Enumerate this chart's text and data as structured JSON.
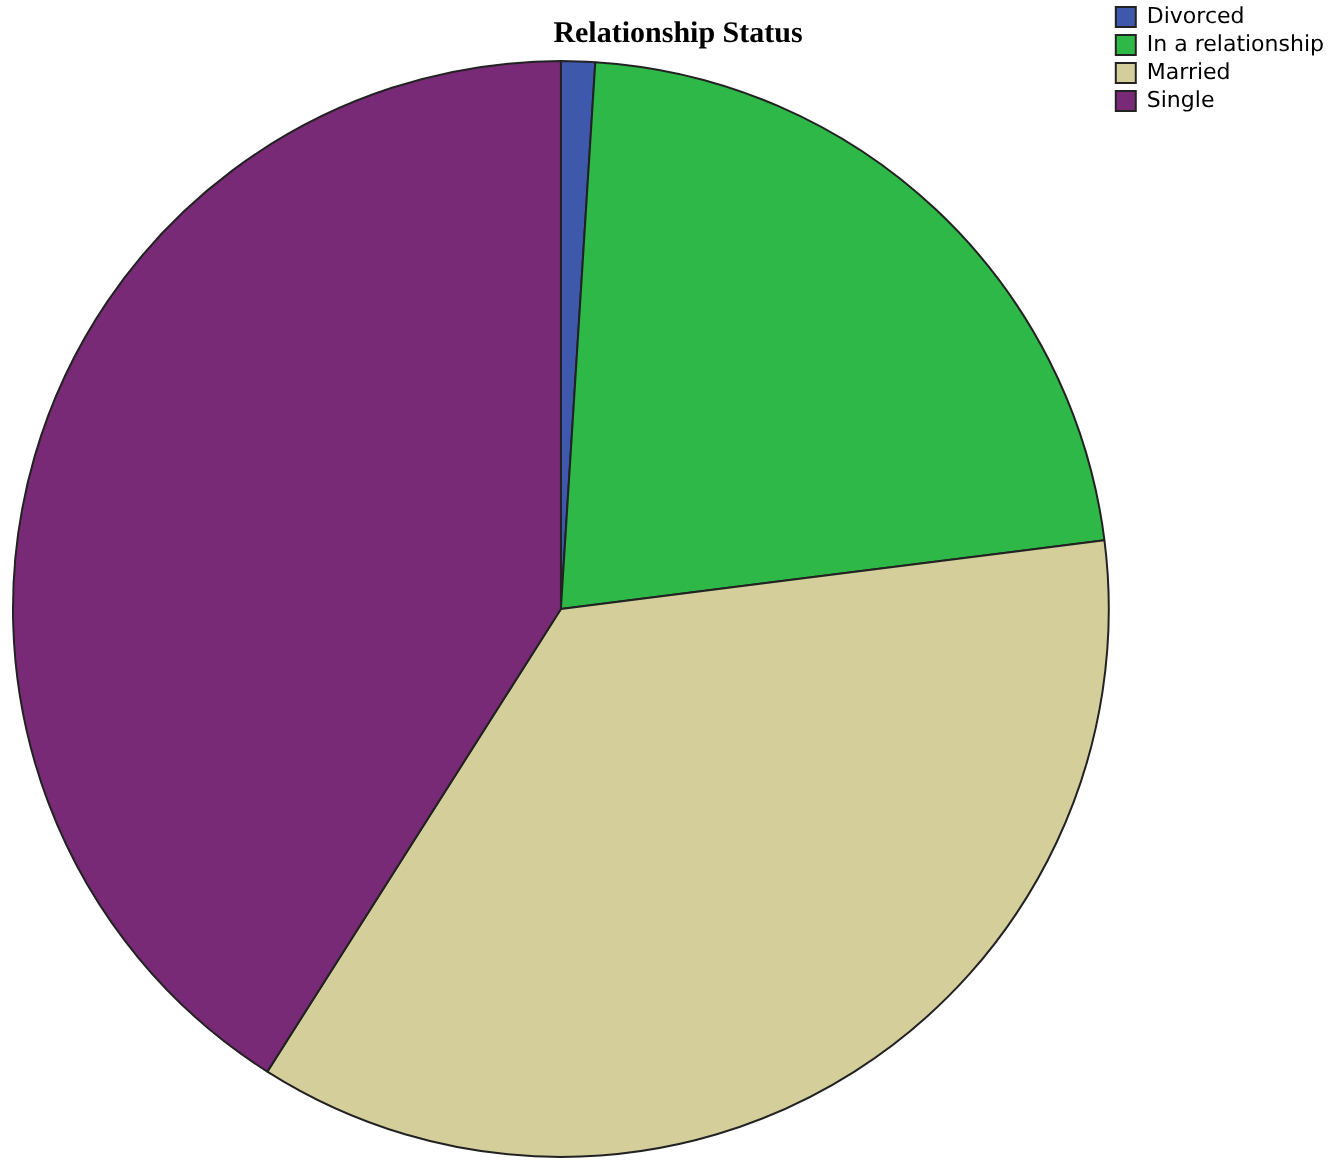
{
  "chart_data": {
    "type": "pie",
    "title": "Relationship Status",
    "categories": [
      "Divorced",
      "In a relationship",
      "Married",
      "Single"
    ],
    "values": [
      1,
      22,
      36,
      41
    ],
    "colors": [
      "#3e58ac",
      "#2eb848",
      "#d4cf9a",
      "#792a77"
    ],
    "legend": "top right"
  }
}
